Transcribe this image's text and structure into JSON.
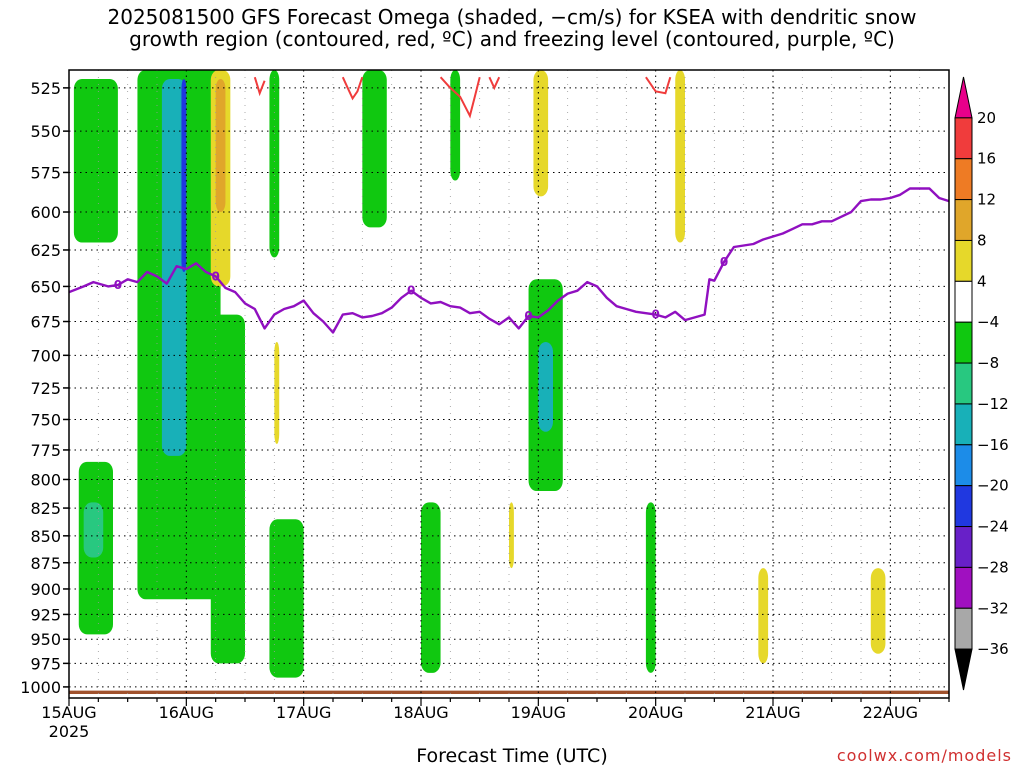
{
  "title": {
    "line1": "2025081500 GFS Forecast Omega (shaded, −cm/s) for KSEA with dendritic snow",
    "line2": "growth region (contoured, red, ºC) and freezing level (contoured, purple, ºC)"
  },
  "credit": "coolwx.com/models",
  "chart_data": {
    "type": "time-height cross section",
    "title": "2025081500 GFS Forecast Omega (shaded, −cm/s) for KSEA with dendritic snow growth region (contoured, red, ºC) and freezing level (contoured, purple, ºC)",
    "xlabel": "Forecast Time (UTC)",
    "ylabel": "",
    "x_ticks": [
      "15AUG",
      "16AUG",
      "17AUG",
      "18AUG",
      "19AUG",
      "20AUG",
      "21AUG",
      "22AUG"
    ],
    "x_year_label": "2025",
    "x_range_hours": [
      0,
      180
    ],
    "y_ticks": [
      525,
      550,
      575,
      600,
      625,
      650,
      675,
      700,
      725,
      750,
      775,
      800,
      825,
      850,
      875,
      900,
      925,
      950,
      975,
      1000
    ],
    "ylim": [
      515,
      1012
    ],
    "y_axis": "pressure (mb), inverted, log scale",
    "grid": true,
    "colorbar": {
      "labels": [
        "20",
        "16",
        "12",
        "8",
        "4",
        "−4",
        "−8",
        "−12",
        "−16",
        "−20",
        "−24",
        "−28",
        "−32",
        "−36"
      ],
      "bins": [
        {
          "range": "> 20",
          "color": "#e8008a"
        },
        {
          "range": "16 to 20",
          "color": "#f03c3c"
        },
        {
          "range": "12 to 16",
          "color": "#ee7b24"
        },
        {
          "range": "8 to 12",
          "color": "#e0a62a"
        },
        {
          "range": "4 to 8",
          "color": "#e6d82a"
        },
        {
          "range": "-4 to 4",
          "color": "#ffffff"
        },
        {
          "range": "-8 to -4",
          "color": "#10c810"
        },
        {
          "range": "-12 to -8",
          "color": "#28c880"
        },
        {
          "range": "-16 to -12",
          "color": "#18b0b8"
        },
        {
          "range": "-20 to -16",
          "color": "#1c8ce8"
        },
        {
          "range": "-24 to -20",
          "color": "#2038e0"
        },
        {
          "range": "-28 to -24",
          "color": "#6820c8"
        },
        {
          "range": "-32 to -28",
          "color": "#a010c0"
        },
        {
          "range": "-36 to -32",
          "color": "#a8a8a8"
        },
        {
          "range": "< -36",
          "color": "#000000"
        }
      ]
    },
    "freezing_level": {
      "label": "0",
      "color": "#9010c0",
      "points_hours_mb": [
        [
          0,
          654
        ],
        [
          3,
          650
        ],
        [
          5,
          647
        ],
        [
          8,
          650
        ],
        [
          10,
          649
        ],
        [
          12,
          645
        ],
        [
          14,
          647
        ],
        [
          16,
          640
        ],
        [
          18,
          643
        ],
        [
          20,
          648
        ],
        [
          22,
          636
        ],
        [
          24,
          638
        ],
        [
          26,
          634
        ],
        [
          28,
          640
        ],
        [
          30,
          643
        ],
        [
          32,
          651
        ],
        [
          34,
          654
        ],
        [
          36,
          662
        ],
        [
          38,
          666
        ],
        [
          40,
          680
        ],
        [
          42,
          670
        ],
        [
          44,
          666
        ],
        [
          46,
          664
        ],
        [
          48,
          660
        ],
        [
          50,
          669
        ],
        [
          52,
          675
        ],
        [
          54,
          683
        ],
        [
          56,
          670
        ],
        [
          58,
          669
        ],
        [
          60,
          672
        ],
        [
          62,
          671
        ],
        [
          64,
          669
        ],
        [
          66,
          665
        ],
        [
          68,
          658
        ],
        [
          70,
          653
        ],
        [
          72,
          658
        ],
        [
          74,
          662
        ],
        [
          76,
          661
        ],
        [
          78,
          664
        ],
        [
          80,
          665
        ],
        [
          82,
          669
        ],
        [
          84,
          668
        ],
        [
          86,
          673
        ],
        [
          88,
          677
        ],
        [
          90,
          672
        ],
        [
          92,
          680
        ],
        [
          94,
          671
        ],
        [
          96,
          672
        ],
        [
          98,
          667
        ],
        [
          100,
          660
        ],
        [
          102,
          655
        ],
        [
          104,
          653
        ],
        [
          106,
          647
        ],
        [
          108,
          650
        ],
        [
          110,
          658
        ],
        [
          112,
          664
        ],
        [
          114,
          666
        ],
        [
          116,
          668
        ],
        [
          118,
          669
        ],
        [
          120,
          670
        ],
        [
          122,
          672
        ],
        [
          124,
          668
        ],
        [
          126,
          674
        ],
        [
          128,
          672
        ],
        [
          130,
          670
        ],
        [
          131,
          645
        ],
        [
          132,
          646
        ],
        [
          134,
          633
        ],
        [
          136,
          623
        ],
        [
          138,
          622
        ],
        [
          140,
          621
        ],
        [
          142,
          618
        ],
        [
          144,
          616
        ],
        [
          146,
          614
        ],
        [
          148,
          611
        ],
        [
          150,
          608
        ],
        [
          152,
          608
        ],
        [
          154,
          606
        ],
        [
          156,
          606
        ],
        [
          158,
          603
        ],
        [
          160,
          600
        ],
        [
          162,
          593
        ],
        [
          164,
          592
        ],
        [
          166,
          592
        ],
        [
          168,
          591
        ],
        [
          170,
          589
        ],
        [
          172,
          585
        ],
        [
          174,
          585
        ],
        [
          176,
          585
        ],
        [
          178,
          591
        ],
        [
          180,
          593
        ]
      ]
    },
    "dgz_contour": {
      "label": "dendritic snow growth region",
      "color": "#f03c3c",
      "segments_hours_mb": [
        [
          [
            38,
            519
          ],
          [
            39,
            528
          ],
          [
            40,
            521
          ]
        ],
        [
          [
            56,
            519
          ],
          [
            57,
            525
          ],
          [
            58,
            531
          ],
          [
            59,
            527
          ],
          [
            60,
            519
          ]
        ],
        [
          [
            76,
            519
          ],
          [
            78,
            525
          ],
          [
            80,
            530
          ],
          [
            82,
            541
          ],
          [
            83,
            530
          ],
          [
            84,
            519
          ]
        ],
        [
          [
            86,
            519
          ],
          [
            87,
            525
          ],
          [
            88,
            519
          ]
        ],
        [
          [
            118,
            519
          ],
          [
            120,
            527
          ],
          [
            122,
            528
          ],
          [
            123,
            519
          ]
        ]
      ]
    },
    "omega_regions": [
      {
        "color_bin": "-8 to -4",
        "approx_span_hours": [
          1,
          10
        ],
        "approx_span_mb": [
          520,
          620
        ]
      },
      {
        "color_bin": "-8 to -4",
        "approx_span_hours": [
          2,
          9
        ],
        "approx_span_mb": [
          785,
          945
        ]
      },
      {
        "color_bin": "-12 to -8",
        "approx_span_hours": [
          3,
          7
        ],
        "approx_span_mb": [
          820,
          870
        ]
      },
      {
        "color_bin": "-8 to -4",
        "approx_span_hours": [
          14,
          31
        ],
        "approx_span_mb": [
          515,
          910
        ]
      },
      {
        "color_bin": "-16 to -12",
        "approx_span_hours": [
          19,
          24
        ],
        "approx_span_mb": [
          520,
          780
        ]
      },
      {
        "color_bin": "-24 to -20",
        "approx_span_hours": [
          23,
          24
        ],
        "approx_span_mb": [
          520,
          640
        ]
      },
      {
        "color_bin": "4 to 8",
        "approx_span_hours": [
          29,
          33
        ],
        "approx_span_mb": [
          515,
          650
        ]
      },
      {
        "color_bin": "8 to 12",
        "approx_span_hours": [
          30,
          32
        ],
        "approx_span_mb": [
          520,
          600
        ]
      },
      {
        "color_bin": "-8 to -4",
        "approx_span_hours": [
          29,
          36
        ],
        "approx_span_mb": [
          670,
          975
        ]
      },
      {
        "color_bin": "-8 to -4",
        "approx_span_hours": [
          41,
          43
        ],
        "approx_span_mb": [
          515,
          630
        ]
      },
      {
        "color_bin": "4 to 8",
        "approx_span_hours": [
          42,
          43
        ],
        "approx_span_mb": [
          690,
          770
        ]
      },
      {
        "color_bin": "-8 to -4",
        "approx_span_hours": [
          41,
          48
        ],
        "approx_span_mb": [
          835,
          990
        ]
      },
      {
        "color_bin": "-8 to -4",
        "approx_span_hours": [
          60,
          65
        ],
        "approx_span_mb": [
          515,
          610
        ]
      },
      {
        "color_bin": "-8 to -4",
        "approx_span_hours": [
          72,
          76
        ],
        "approx_span_mb": [
          820,
          985
        ]
      },
      {
        "color_bin": "-8 to -4",
        "approx_span_hours": [
          78,
          80
        ],
        "approx_span_mb": [
          515,
          580
        ]
      },
      {
        "color_bin": "4 to 8",
        "approx_span_hours": [
          90,
          91
        ],
        "approx_span_mb": [
          820,
          880
        ]
      },
      {
        "color_bin": "-8 to -4",
        "approx_span_hours": [
          94,
          101
        ],
        "approx_span_mb": [
          645,
          810
        ]
      },
      {
        "color_bin": "-16 to -12",
        "approx_span_hours": [
          96,
          99
        ],
        "approx_span_mb": [
          690,
          760
        ]
      },
      {
        "color_bin": "4 to 8",
        "approx_span_hours": [
          95,
          98
        ],
        "approx_span_mb": [
          515,
          590
        ]
      },
      {
        "color_bin": "-8 to -4",
        "approx_span_hours": [
          118,
          120
        ],
        "approx_span_mb": [
          820,
          985
        ]
      },
      {
        "color_bin": "4 to 8",
        "approx_span_hours": [
          124,
          126
        ],
        "approx_span_mb": [
          515,
          620
        ]
      },
      {
        "color_bin": "4 to 8",
        "approx_span_hours": [
          141,
          143
        ],
        "approx_span_mb": [
          880,
          975
        ]
      },
      {
        "color_bin": "4 to 8",
        "approx_span_hours": [
          164,
          167
        ],
        "approx_span_mb": [
          880,
          965
        ]
      }
    ],
    "terrain_band_color": "#a0522d"
  }
}
